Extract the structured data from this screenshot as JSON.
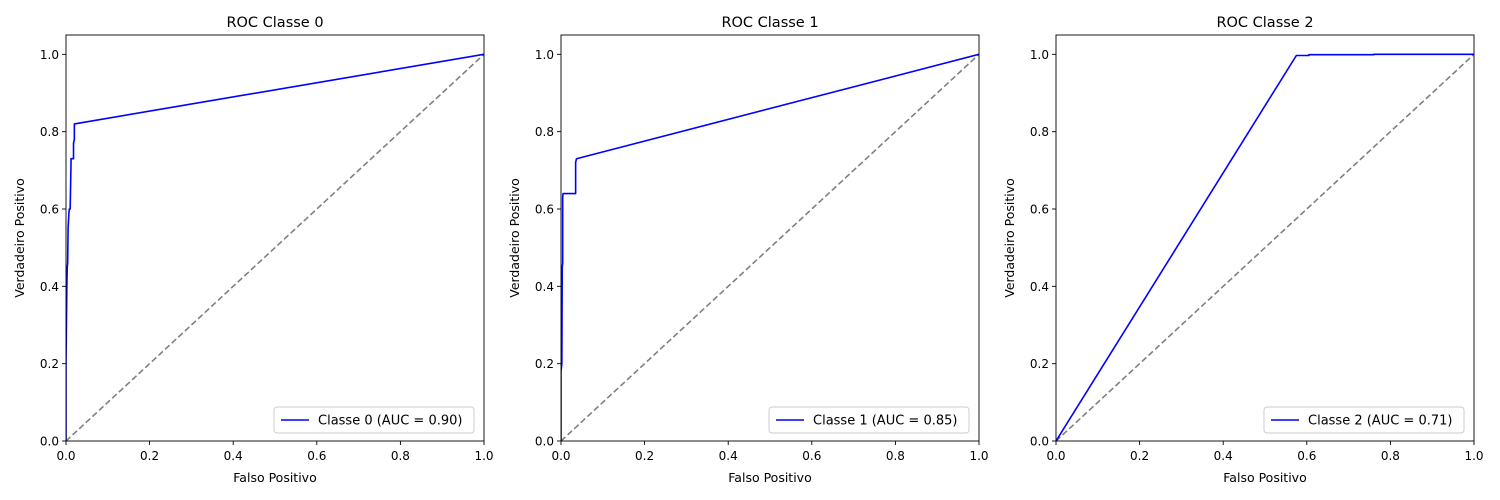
{
  "colors": {
    "roc": "#0000ff",
    "chance": "#808080",
    "axes": "#000000",
    "legend_border": "#cccccc"
  },
  "chart_data": [
    {
      "type": "line",
      "title": "ROC Classe 0",
      "xlabel": "Falso Positivo",
      "ylabel": "Verdadeiro Positivo",
      "xlim": [
        0,
        1.0
      ],
      "ylim": [
        0,
        1.05
      ],
      "xticks": [
        "0.0",
        "0.2",
        "0.4",
        "0.6",
        "0.8",
        "1.0"
      ],
      "yticks": [
        "0.0",
        "0.2",
        "0.4",
        "0.6",
        "0.8",
        "1.0"
      ],
      "grid": false,
      "legend_position": "lower-right",
      "series": [
        {
          "name": "Classe 0 (AUC = 0.90)",
          "x": [
            0.0,
            0.0,
            0.002,
            0.003,
            0.004,
            0.005,
            0.007,
            0.008,
            0.01,
            0.012,
            0.012,
            0.018,
            0.018,
            0.02,
            0.02,
            1.0
          ],
          "y": [
            0.0,
            0.2,
            0.4,
            0.45,
            0.46,
            0.55,
            0.59,
            0.6,
            0.6,
            0.72,
            0.73,
            0.73,
            0.77,
            0.78,
            0.82,
            1.0
          ]
        }
      ],
      "reference_line": {
        "x": [
          0,
          1
        ],
        "y": [
          0,
          1
        ],
        "style": "dashed"
      }
    },
    {
      "type": "line",
      "title": "ROC Classe 1",
      "xlabel": "Falso Positivo",
      "ylabel": "Verdadeiro Positivo",
      "xlim": [
        0,
        1.0
      ],
      "ylim": [
        0,
        1.05
      ],
      "xticks": [
        "0.0",
        "0.2",
        "0.4",
        "0.6",
        "0.8",
        "1.0"
      ],
      "yticks": [
        "0.0",
        "0.2",
        "0.4",
        "0.6",
        "0.8",
        "1.0"
      ],
      "grid": false,
      "legend_position": "lower-right",
      "series": [
        {
          "name": "Classe 1 (AUC = 0.85)",
          "x": [
            0.0,
            0.0,
            0.002,
            0.003,
            0.004,
            0.004,
            0.005,
            0.035,
            0.035,
            0.037,
            1.0
          ],
          "y": [
            0.0,
            0.18,
            0.2,
            0.45,
            0.46,
            0.63,
            0.64,
            0.64,
            0.72,
            0.73,
            1.0
          ]
        }
      ],
      "reference_line": {
        "x": [
          0,
          1
        ],
        "y": [
          0,
          1
        ],
        "style": "dashed"
      }
    },
    {
      "type": "line",
      "title": "ROC Classe 2",
      "xlabel": "Falso Positivo",
      "ylabel": "Verdadeiro Positivo",
      "xlim": [
        0,
        1.0
      ],
      "ylim": [
        0,
        1.05
      ],
      "xticks": [
        "0.0",
        "0.2",
        "0.4",
        "0.6",
        "0.8",
        "1.0"
      ],
      "yticks": [
        "0.0",
        "0.2",
        "0.4",
        "0.6",
        "0.8",
        "1.0"
      ],
      "grid": false,
      "legend_position": "lower-right",
      "series": [
        {
          "name": "Classe 2 (AUC = 0.71)",
          "x": [
            0.0,
            0.575,
            0.605,
            0.605,
            0.76,
            0.76,
            1.0
          ],
          "y": [
            0.0,
            0.997,
            0.997,
            0.999,
            0.999,
            1.0,
            1.0
          ]
        }
      ],
      "reference_line": {
        "x": [
          0,
          1
        ],
        "y": [
          0,
          1
        ],
        "style": "dashed"
      }
    }
  ]
}
